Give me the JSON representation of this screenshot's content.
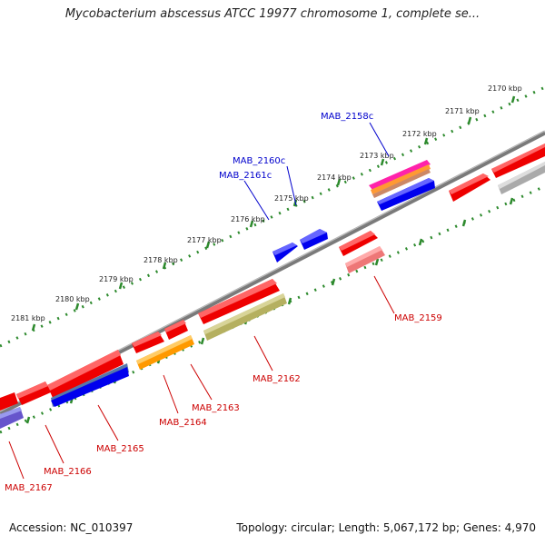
{
  "title": "Mycobacterium abscessus ATCC 19977 chromosome 1, complete se...",
  "footer": {
    "accession": "Accession: NC_010397",
    "topology": "Topology: circular; Length: 5,067,172 bp; Genes: 4,970"
  },
  "colors": {
    "backbone": "#888888",
    "ruler_dots": "#2d8a2d",
    "forward_label": "#0000cc",
    "reverse_label": "#cc0000"
  },
  "ruler_labels": [
    "2170 kbp",
    "2171 kbp",
    "2172 kbp",
    "2173 kbp",
    "2174 kbp",
    "2175 kbp",
    "2176 kbp",
    "2177 kbp",
    "2178 kbp",
    "2179 kbp",
    "2180 kbp",
    "2181 kbp"
  ],
  "forward_gene_labels": [
    "MAB_2158c",
    "MAB_2160c",
    "MAB_2161c"
  ],
  "reverse_gene_labels": [
    "MAB_2159",
    "MAB_2162",
    "MAB_2163",
    "MAB_2164",
    "MAB_2165",
    "MAB_2166",
    "MAB_2167"
  ]
}
